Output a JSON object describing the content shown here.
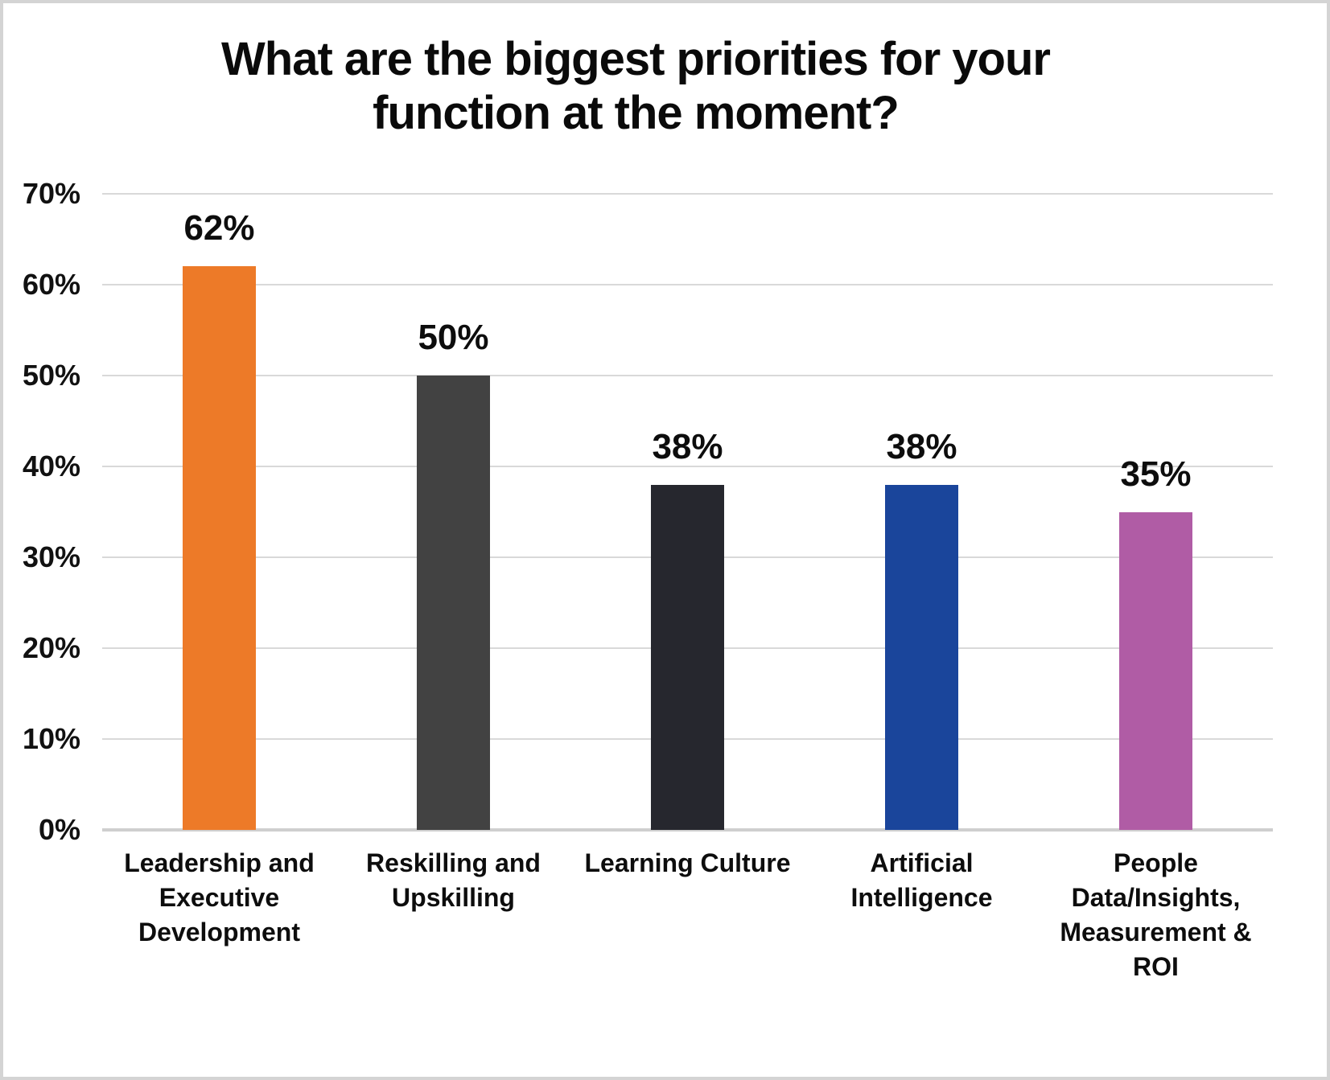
{
  "frame": {
    "background": "#ffffff",
    "border_color": "#d4d4d4"
  },
  "chart_data": {
    "type": "bar",
    "title": "What are the biggest priorities for your function at the moment?",
    "title_lines": [
      "What are the biggest priorities for your",
      "function at the moment?"
    ],
    "categories": [
      "Leadership and Executive Development",
      "Reskilling and Upskilling",
      "Learning Culture",
      "Artificial Intelligence",
      "People Data/Insights, Measurement & ROI"
    ],
    "category_lines": [
      [
        "Leadership and",
        "Executive",
        "Development"
      ],
      [
        "Reskilling and",
        "Upskilling"
      ],
      [
        "Learning Culture"
      ],
      [
        "Artificial",
        "Intelligence"
      ],
      [
        "People",
        "Data/Insights,",
        "Measurement &",
        "ROI"
      ]
    ],
    "values": [
      62,
      50,
      38,
      38,
      35
    ],
    "value_labels": [
      "62%",
      "50%",
      "38%",
      "38%",
      "35%"
    ],
    "bar_colors": [
      "#ED7A28",
      "#424242",
      "#26272E",
      "#1A459B",
      "#B05CA5"
    ],
    "y_ticks": [
      "70%",
      "60%",
      "50%",
      "40%",
      "30%",
      "20%",
      "10%",
      "0%"
    ],
    "y_tick_values": [
      70,
      60,
      50,
      40,
      30,
      20,
      10,
      0
    ],
    "ylim": [
      0,
      70
    ],
    "xlabel": "",
    "ylabel": "",
    "grid": true,
    "gridline_color": "#D9D9D9",
    "axis_line_color": "#CFCFCF",
    "text_color": "#0D0D0D",
    "legend": "none"
  }
}
